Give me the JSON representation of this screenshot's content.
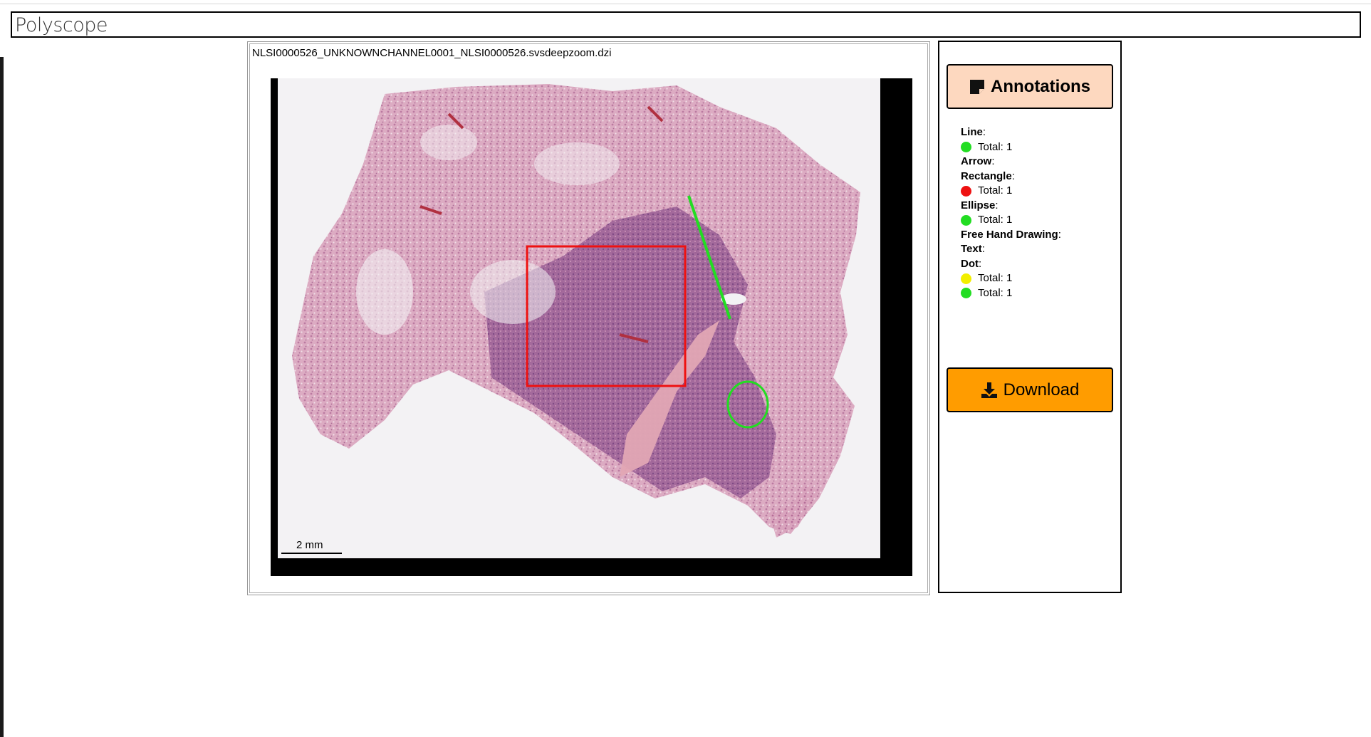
{
  "app": {
    "title": "Polyscope"
  },
  "viewer": {
    "file_name": "NLSI0000526_UNKNOWNCHANNEL0001_NLSI0000526.svsdeepzoom.dzi",
    "scale_bar_label": "2 mm"
  },
  "sidebar": {
    "annotations_label": "Annotations",
    "annotations_icon": "sticky-note-icon",
    "download_label": "Download",
    "download_icon": "download-icon",
    "annotation_types": [
      {
        "name": "Line",
        "items": [
          {
            "color": "#22dd22",
            "text": "Total: 1"
          }
        ]
      },
      {
        "name": "Arrow",
        "items": []
      },
      {
        "name": "Rectangle",
        "items": [
          {
            "color": "#ee1111",
            "text": "Total: 1"
          }
        ]
      },
      {
        "name": "Ellipse",
        "items": [
          {
            "color": "#22dd22",
            "text": "Total: 1"
          }
        ]
      },
      {
        "name": "Free Hand Drawing",
        "items": []
      },
      {
        "name": "Text",
        "items": []
      },
      {
        "name": "Dot",
        "items": [
          {
            "color": "#f2ee00",
            "text": "Total: 1"
          },
          {
            "color": "#22dd22",
            "text": "Total: 1"
          }
        ]
      }
    ]
  },
  "colors": {
    "annotations_button": "#fdd8bf",
    "download_button": "#ff9c00",
    "rectangle_annotation": "#ee1111",
    "line_annotation": "#22dd22",
    "ellipse_annotation": "#22dd22"
  }
}
